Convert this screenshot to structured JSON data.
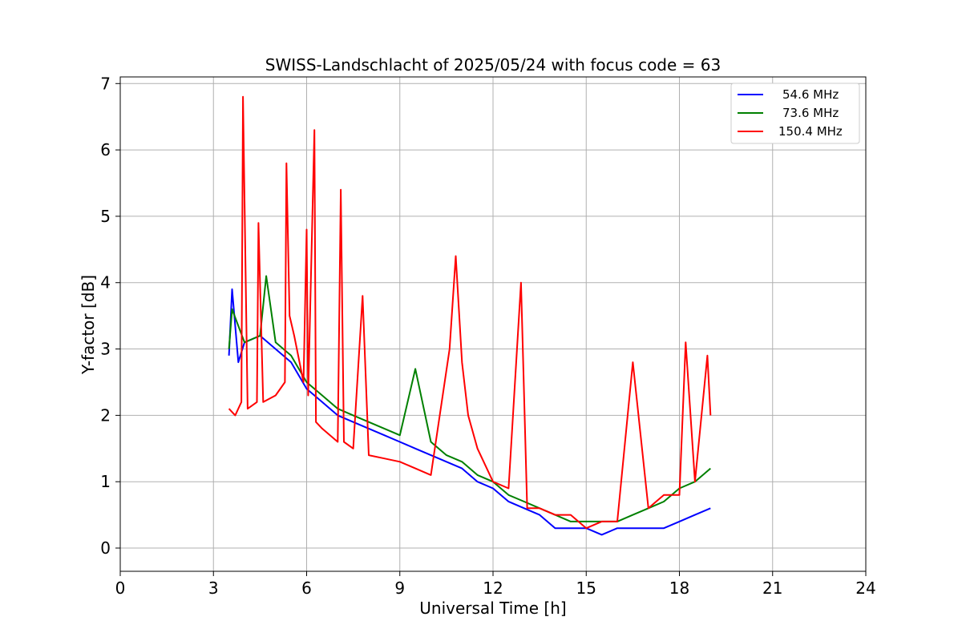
{
  "chart_data": {
    "type": "line",
    "title": "SWISS-Landschlacht of 2025/05/24 with focus code = 63",
    "xlabel": "Universal Time [h]",
    "ylabel": "Y-factor [dB]",
    "xlim": [
      0,
      24
    ],
    "ylim": [
      -0.35,
      7.1
    ],
    "xticks": [
      0,
      3,
      6,
      9,
      12,
      15,
      18,
      21,
      24
    ],
    "yticks": [
      0,
      1,
      2,
      3,
      4,
      5,
      6,
      7
    ],
    "xtick_labels": [
      "0",
      "3",
      "6",
      "9",
      "12",
      "15",
      "18",
      "21",
      "24"
    ],
    "ytick_labels": [
      "0",
      "1",
      "2",
      "3",
      "4",
      "5",
      "6",
      "7"
    ],
    "grid": true,
    "legend_position": "top-right",
    "series": [
      {
        "name": "54.6 MHz",
        "color": "#0000ff",
        "x": [
          3.5,
          3.6,
          3.8,
          4.0,
          4.5,
          5.0,
          5.5,
          6.0,
          6.5,
          7.0,
          7.5,
          8.0,
          8.5,
          9.0,
          9.5,
          10.0,
          10.5,
          11.0,
          11.5,
          12.0,
          12.5,
          13.0,
          13.5,
          14.0,
          14.5,
          15.0,
          15.5,
          16.0,
          16.5,
          17.0,
          17.5,
          18.0,
          18.5,
          19.0
        ],
        "y": [
          2.9,
          3.9,
          2.8,
          3.1,
          3.2,
          3.0,
          2.8,
          2.4,
          2.2,
          2.0,
          1.9,
          1.8,
          1.7,
          1.6,
          1.5,
          1.4,
          1.3,
          1.2,
          1.0,
          0.9,
          0.7,
          0.6,
          0.5,
          0.3,
          0.3,
          0.3,
          0.2,
          0.3,
          0.3,
          0.3,
          0.3,
          0.4,
          0.5,
          0.6
        ]
      },
      {
        "name": "73.6 MHz",
        "color": "#008000",
        "x": [
          3.5,
          3.6,
          4.0,
          4.5,
          4.7,
          5.0,
          5.5,
          6.0,
          6.5,
          7.0,
          7.5,
          8.0,
          8.5,
          9.0,
          9.5,
          10.0,
          10.5,
          11.0,
          11.5,
          12.0,
          12.5,
          13.0,
          13.5,
          14.0,
          14.5,
          15.0,
          15.5,
          16.0,
          16.5,
          17.0,
          17.5,
          18.0,
          18.5,
          19.0
        ],
        "y": [
          3.0,
          3.6,
          3.1,
          3.2,
          4.1,
          3.1,
          2.9,
          2.5,
          2.3,
          2.1,
          2.0,
          1.9,
          1.8,
          1.7,
          2.7,
          1.6,
          1.4,
          1.3,
          1.1,
          1.0,
          0.8,
          0.7,
          0.6,
          0.5,
          0.4,
          0.4,
          0.4,
          0.4,
          0.5,
          0.6,
          0.7,
          0.9,
          1.0,
          1.2
        ]
      },
      {
        "name": "150.4 MHz",
        "color": "#ff0000",
        "x": [
          3.5,
          3.7,
          3.9,
          3.95,
          4.1,
          4.4,
          4.45,
          4.6,
          5.0,
          5.3,
          5.35,
          5.45,
          5.6,
          5.9,
          6.0,
          6.05,
          6.25,
          6.3,
          6.5,
          7.0,
          7.1,
          7.2,
          7.5,
          7.8,
          8.0,
          8.5,
          9.0,
          9.5,
          10.0,
          10.6,
          10.8,
          11.0,
          11.2,
          11.5,
          12.0,
          12.5,
          12.9,
          13.1,
          13.5,
          14.0,
          14.5,
          15.0,
          15.5,
          16.0,
          16.5,
          17.0,
          17.5,
          18.0,
          18.2,
          18.5,
          18.9,
          19.0
        ],
        "y": [
          2.1,
          2.0,
          2.2,
          6.8,
          2.1,
          2.2,
          4.9,
          2.2,
          2.3,
          2.5,
          5.8,
          3.5,
          3.2,
          2.5,
          4.8,
          2.3,
          6.3,
          1.9,
          1.8,
          1.6,
          5.4,
          1.6,
          1.5,
          3.8,
          1.4,
          1.35,
          1.3,
          1.2,
          1.1,
          3.0,
          4.4,
          2.8,
          2.0,
          1.5,
          1.0,
          0.9,
          4.0,
          0.6,
          0.6,
          0.5,
          0.5,
          0.3,
          0.4,
          0.4,
          2.8,
          0.6,
          0.8,
          0.8,
          3.1,
          1.0,
          2.9,
          2.0
        ]
      }
    ]
  }
}
